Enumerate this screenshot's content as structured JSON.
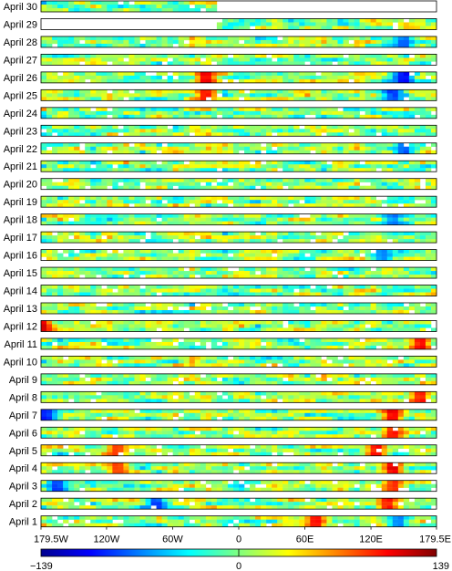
{
  "chart_data": {
    "type": "heatmap",
    "days": [
      "April 30",
      "April 29",
      "April 28",
      "April 27",
      "April 26",
      "April 25",
      "April 24",
      "April 23",
      "April 22",
      "April 21",
      "April 20",
      "April 19",
      "April 18",
      "April 17",
      "April 16",
      "April 15",
      "April 14",
      "April 13",
      "April 12",
      "April 11",
      "April 10",
      "April 9",
      "April 8",
      "April 7",
      "April 6",
      "April 5",
      "April 4",
      "April 3",
      "April 2",
      "April 1"
    ],
    "x_tick_labels": [
      "179.5W",
      "120W",
      "60W",
      "0",
      "60E",
      "120E",
      "179.5E"
    ],
    "x_tick_values": [
      -179.5,
      -120,
      -60,
      0,
      60,
      120,
      179.5
    ],
    "xlim": [
      -179.5,
      179.5
    ],
    "colorbar": {
      "min": -139,
      "max": 139,
      "tick_labels": [
        "−139",
        "0",
        "139"
      ],
      "colormap": "jet",
      "stops": [
        "#00008f",
        "#0000ff",
        "#00ffff",
        "#ffff00",
        "#ff0000",
        "#800000"
      ]
    },
    "partial_coverage": {
      "April 30": [
        -179.5,
        -20
      ],
      "April 29": [
        -20,
        179.5
      ]
    },
    "hotspots": [
      {
        "day": "April 28",
        "lon": 150,
        "value": -90
      },
      {
        "day": "April 26",
        "lon": 150,
        "value": -120
      },
      {
        "day": "April 26",
        "lon": -30,
        "value": 120
      },
      {
        "day": "April 25",
        "lon": -30,
        "value": 110
      },
      {
        "day": "April 25",
        "lon": 140,
        "value": -100
      },
      {
        "day": "April 22",
        "lon": 150,
        "value": -90
      },
      {
        "day": "April 18",
        "lon": 140,
        "value": -80
      },
      {
        "day": "April 16",
        "lon": 130,
        "value": -80
      },
      {
        "day": "April 12",
        "lon": -179,
        "value": 130
      },
      {
        "day": "April 11",
        "lon": 165,
        "value": 120
      },
      {
        "day": "April 8",
        "lon": 165,
        "value": 110
      },
      {
        "day": "April 7",
        "lon": 140,
        "value": 120
      },
      {
        "day": "April 7",
        "lon": -175,
        "value": -110
      },
      {
        "day": "April 6",
        "lon": 140,
        "value": 110
      },
      {
        "day": "April 5",
        "lon": 125,
        "value": 115
      },
      {
        "day": "April 5",
        "lon": -110,
        "value": 100
      },
      {
        "day": "April 4",
        "lon": 140,
        "value": 125
      },
      {
        "day": "April 4",
        "lon": -110,
        "value": 100
      },
      {
        "day": "April 3",
        "lon": 140,
        "value": 110
      },
      {
        "day": "April 3",
        "lon": -165,
        "value": -100
      },
      {
        "day": "April 2",
        "lon": 135,
        "value": 110
      },
      {
        "day": "April 2",
        "lon": -75,
        "value": -100
      },
      {
        "day": "April 1",
        "lon": 70,
        "value": 120
      },
      {
        "day": "April 1",
        "lon": 145,
        "value": -80
      }
    ]
  }
}
